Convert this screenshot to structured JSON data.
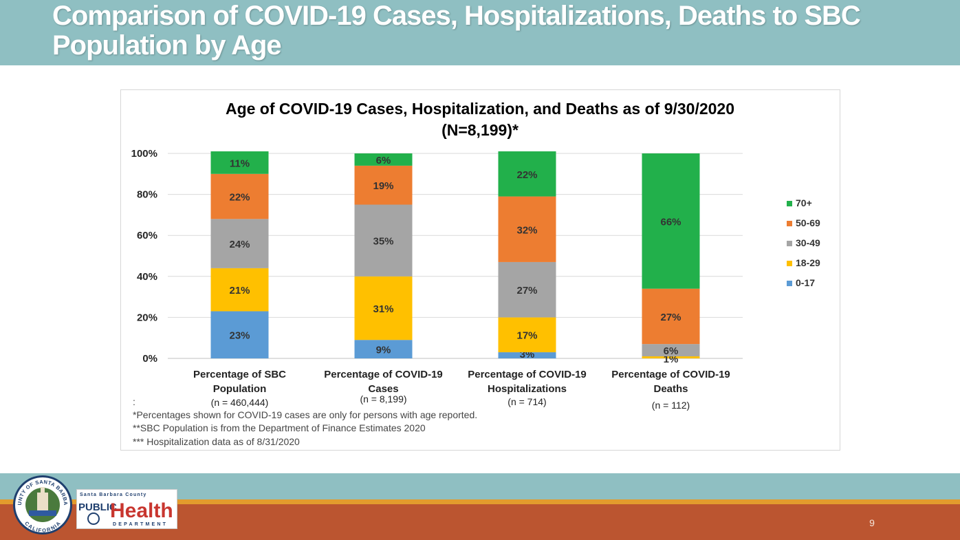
{
  "header": {
    "title": "Comparison of COVID-19 Cases, Hospitalizations, Deaths to SBC Population by Age"
  },
  "chart_data": {
    "type": "bar",
    "stacked": true,
    "title_line1": "Age of COVID-19 Cases, Hospitalization, and Deaths as of 9/30/2020",
    "title_line2": "(N=8,199)*",
    "ylim": [
      0,
      100
    ],
    "yticks": [
      "0%",
      "20%",
      "40%",
      "60%",
      "80%",
      "100%"
    ],
    "categories": [
      {
        "line1": "Percentage of SBC",
        "line2": "Population",
        "n": "(n = 460,444)"
      },
      {
        "line1": "Percentage of COVID-19",
        "line2": "Cases",
        "n": "(n = 8,199)"
      },
      {
        "line1": "Percentage of COVID-19",
        "line2": "Hospitalizations",
        "n": "(n = 714)"
      },
      {
        "line1": "Percentage of COVID-19",
        "line2": "Deaths",
        "n": "(n = 112)"
      }
    ],
    "series": [
      {
        "name": "0-17",
        "color": "#5b9bd5",
        "values": [
          23,
          9,
          3,
          0
        ],
        "labels": [
          "23%",
          "9%",
          "3%",
          ""
        ]
      },
      {
        "name": "18-29",
        "color": "#ffc000",
        "values": [
          21,
          31,
          17,
          1
        ],
        "labels": [
          "21%",
          "31%",
          "17%",
          "1%"
        ]
      },
      {
        "name": "30-49",
        "color": "#a5a5a5",
        "values": [
          24,
          35,
          27,
          6
        ],
        "labels": [
          "24%",
          "35%",
          "27%",
          "6%"
        ]
      },
      {
        "name": "50-69",
        "color": "#ed7d31",
        "values": [
          22,
          19,
          32,
          27
        ],
        "labels": [
          "22%",
          "19%",
          "32%",
          "27%"
        ]
      },
      {
        "name": "70+",
        "color": "#22b04b",
        "values": [
          11,
          6,
          22,
          66
        ],
        "labels": [
          "11%",
          "6%",
          "22%",
          "66%"
        ]
      }
    ],
    "legend": {
      "placement": "right",
      "order": [
        "70+",
        "50-69",
        "30-49",
        "18-29",
        "0-17"
      ]
    },
    "footnotes": [
      ":",
      "*Percentages shown for COVID-19 cases are only for persons with age reported.",
      "**SBC Population is from the Department of Finance Estimates 2020",
      "*** Hospitalization data  as of 8/31/2020"
    ]
  },
  "footer": {
    "page_number": "9",
    "seal_text": "COUNTY OF SANTA BARBARA",
    "seal_bottom": "CALIFORNIA",
    "logo_top": "Santa Barbara County",
    "logo_public": "PUBLIC",
    "logo_health": "Health",
    "logo_department": "DEPARTMENT"
  },
  "colors": {
    "header_teal": "#8fbfc2",
    "footer_gold": "#e39b2d",
    "footer_rust": "#bb5530"
  }
}
